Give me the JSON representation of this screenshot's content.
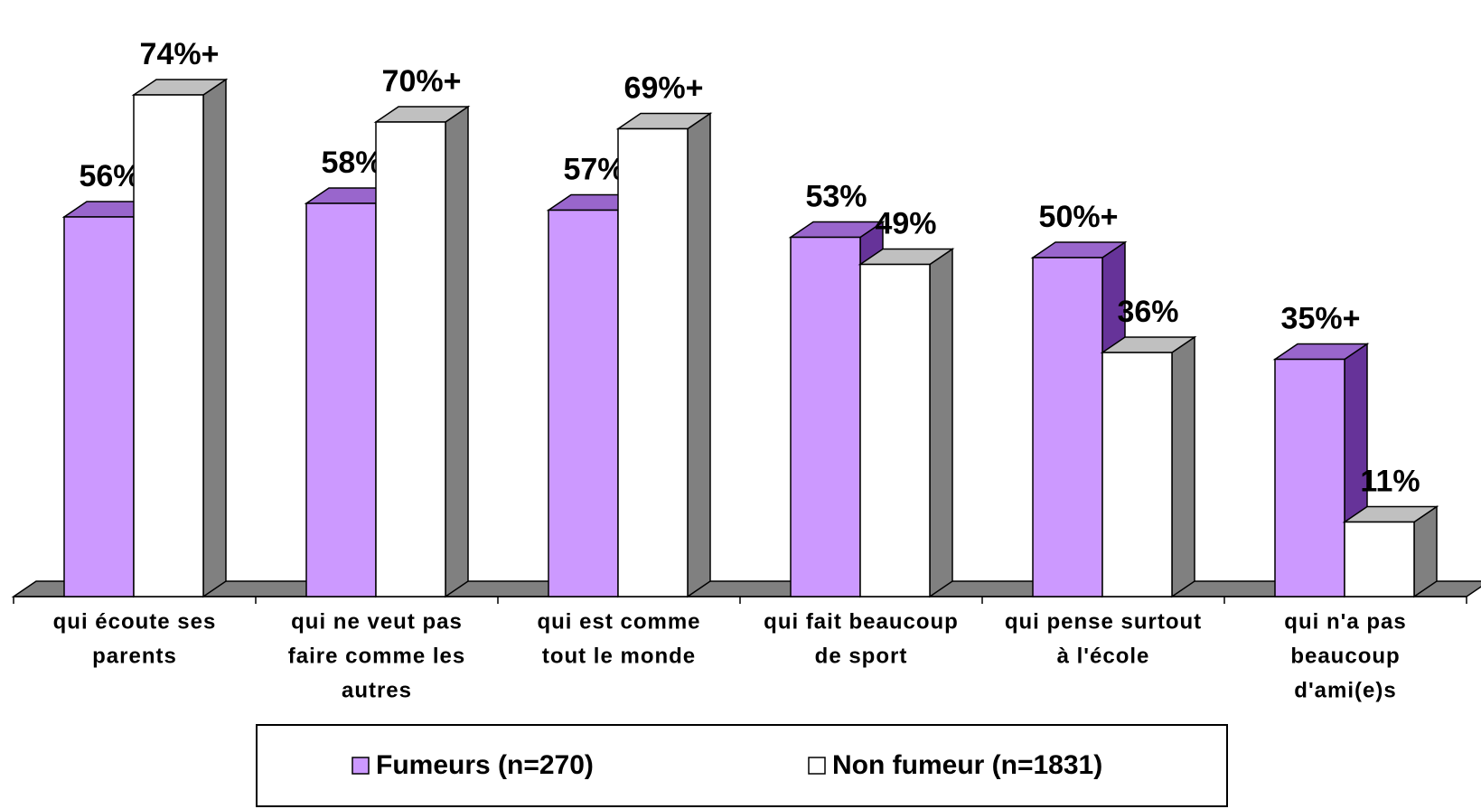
{
  "chart_data": {
    "type": "bar3d",
    "categories": [
      [
        "qui écoute ses",
        "parents"
      ],
      [
        "qui ne veut pas",
        "faire comme les",
        "autres"
      ],
      [
        "qui est comme",
        "tout le monde"
      ],
      [
        "qui fait beaucoup",
        "de sport"
      ],
      [
        "qui pense surtout",
        "à l'école"
      ],
      [
        "qui n'a pas",
        "beaucoup",
        "d'ami(e)s"
      ]
    ],
    "series": [
      {
        "name": "Fumeurs (n=270)",
        "color": "#cc99ff",
        "values": [
          56,
          58,
          57,
          53,
          50,
          35
        ],
        "value_labels": [
          "56%",
          "58%",
          "57%",
          "53%",
          "50%+",
          "35%+"
        ]
      },
      {
        "name": "Non fumeur (n=1831)",
        "color": "#ffffff",
        "values": [
          74,
          70,
          69,
          49,
          36,
          11
        ],
        "value_labels": [
          "74%+",
          "70%+",
          "69%+",
          "49%",
          "36%",
          "11%"
        ]
      }
    ],
    "legend": "bottom"
  }
}
